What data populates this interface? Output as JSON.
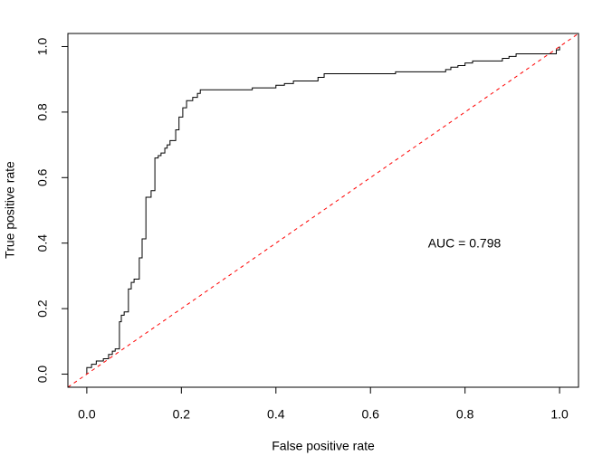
{
  "chart_data": {
    "type": "line",
    "x_label": "False positive rate",
    "y_label": "True positive rate",
    "annotation": "AUC =  0.798",
    "xlim": [
      -0.04,
      1.04
    ],
    "ylim": [
      -0.04,
      1.04
    ],
    "xticks": [
      {
        "value": 0,
        "label": "0.0"
      },
      {
        "value": 0.2,
        "label": "0.2"
      },
      {
        "value": 0.4,
        "label": "0.4"
      },
      {
        "value": 0.6,
        "label": "0.6"
      },
      {
        "value": 0.8,
        "label": "0.8"
      },
      {
        "value": 1,
        "label": "1.0"
      }
    ],
    "yticks": [
      {
        "value": 0,
        "label": "0.0"
      },
      {
        "value": 0.2,
        "label": "0.2"
      },
      {
        "value": 0.4,
        "label": "0.4"
      },
      {
        "value": 0.6,
        "label": "0.6"
      },
      {
        "value": 0.8,
        "label": "0.8"
      },
      {
        "value": 1,
        "label": "1.0"
      }
    ],
    "series": [
      {
        "color": "#000000",
        "dashed": false,
        "x": [
          0,
          0,
          0.01,
          0.01,
          0.02,
          0.02,
          0.035,
          0.035,
          0.046,
          0.046,
          0.054,
          0.054,
          0.06,
          0.06,
          0.069,
          0.069,
          0.073,
          0.073,
          0.079,
          0.079,
          0.088,
          0.088,
          0.094,
          0.094,
          0.1,
          0.1,
          0.111,
          0.111,
          0.117,
          0.117,
          0.125,
          0.125,
          0.136,
          0.136,
          0.144,
          0.144,
          0.151,
          0.151,
          0.157,
          0.157,
          0.165,
          0.165,
          0.17,
          0.17,
          0.176,
          0.176,
          0.188,
          0.188,
          0.195,
          0.195,
          0.203,
          0.203,
          0.211,
          0.211,
          0.224,
          0.224,
          0.234,
          0.234,
          0.24,
          0.24,
          0.35,
          0.35,
          0.4,
          0.4,
          0.418,
          0.418,
          0.437,
          0.437,
          0.489,
          0.489,
          0.502,
          0.502,
          0.653,
          0.653,
          0.759,
          0.759,
          0.77,
          0.77,
          0.785,
          0.785,
          0.8,
          0.8,
          0.816,
          0.816,
          0.879,
          0.879,
          0.893,
          0.893,
          0.908,
          0.908,
          0.993,
          0.993,
          1,
          1
        ],
        "values": [
          0,
          0.02,
          0.02,
          0.03,
          0.03,
          0.04,
          0.04,
          0.047,
          0.047,
          0.06,
          0.06,
          0.07,
          0.07,
          0.077,
          0.077,
          0.16,
          0.16,
          0.18,
          0.18,
          0.19,
          0.19,
          0.26,
          0.26,
          0.28,
          0.28,
          0.29,
          0.29,
          0.355,
          0.355,
          0.413,
          0.413,
          0.54,
          0.54,
          0.56,
          0.56,
          0.66,
          0.66,
          0.667,
          0.667,
          0.675,
          0.675,
          0.69,
          0.69,
          0.7,
          0.7,
          0.713,
          0.713,
          0.746,
          0.746,
          0.785,
          0.785,
          0.813,
          0.813,
          0.835,
          0.835,
          0.845,
          0.845,
          0.857,
          0.857,
          0.868,
          0.868,
          0.874,
          0.874,
          0.882,
          0.882,
          0.887,
          0.887,
          0.895,
          0.895,
          0.906,
          0.906,
          0.917,
          0.917,
          0.923,
          0.923,
          0.93,
          0.93,
          0.937,
          0.937,
          0.942,
          0.942,
          0.95,
          0.95,
          0.956,
          0.956,
          0.964,
          0.964,
          0.97,
          0.97,
          0.978,
          0.978,
          0.99,
          0.99,
          1
        ]
      },
      {
        "color": "#ff0000",
        "dashed": true,
        "x": [
          -0.04,
          1.04
        ],
        "values": [
          -0.04,
          1.04
        ]
      }
    ]
  }
}
